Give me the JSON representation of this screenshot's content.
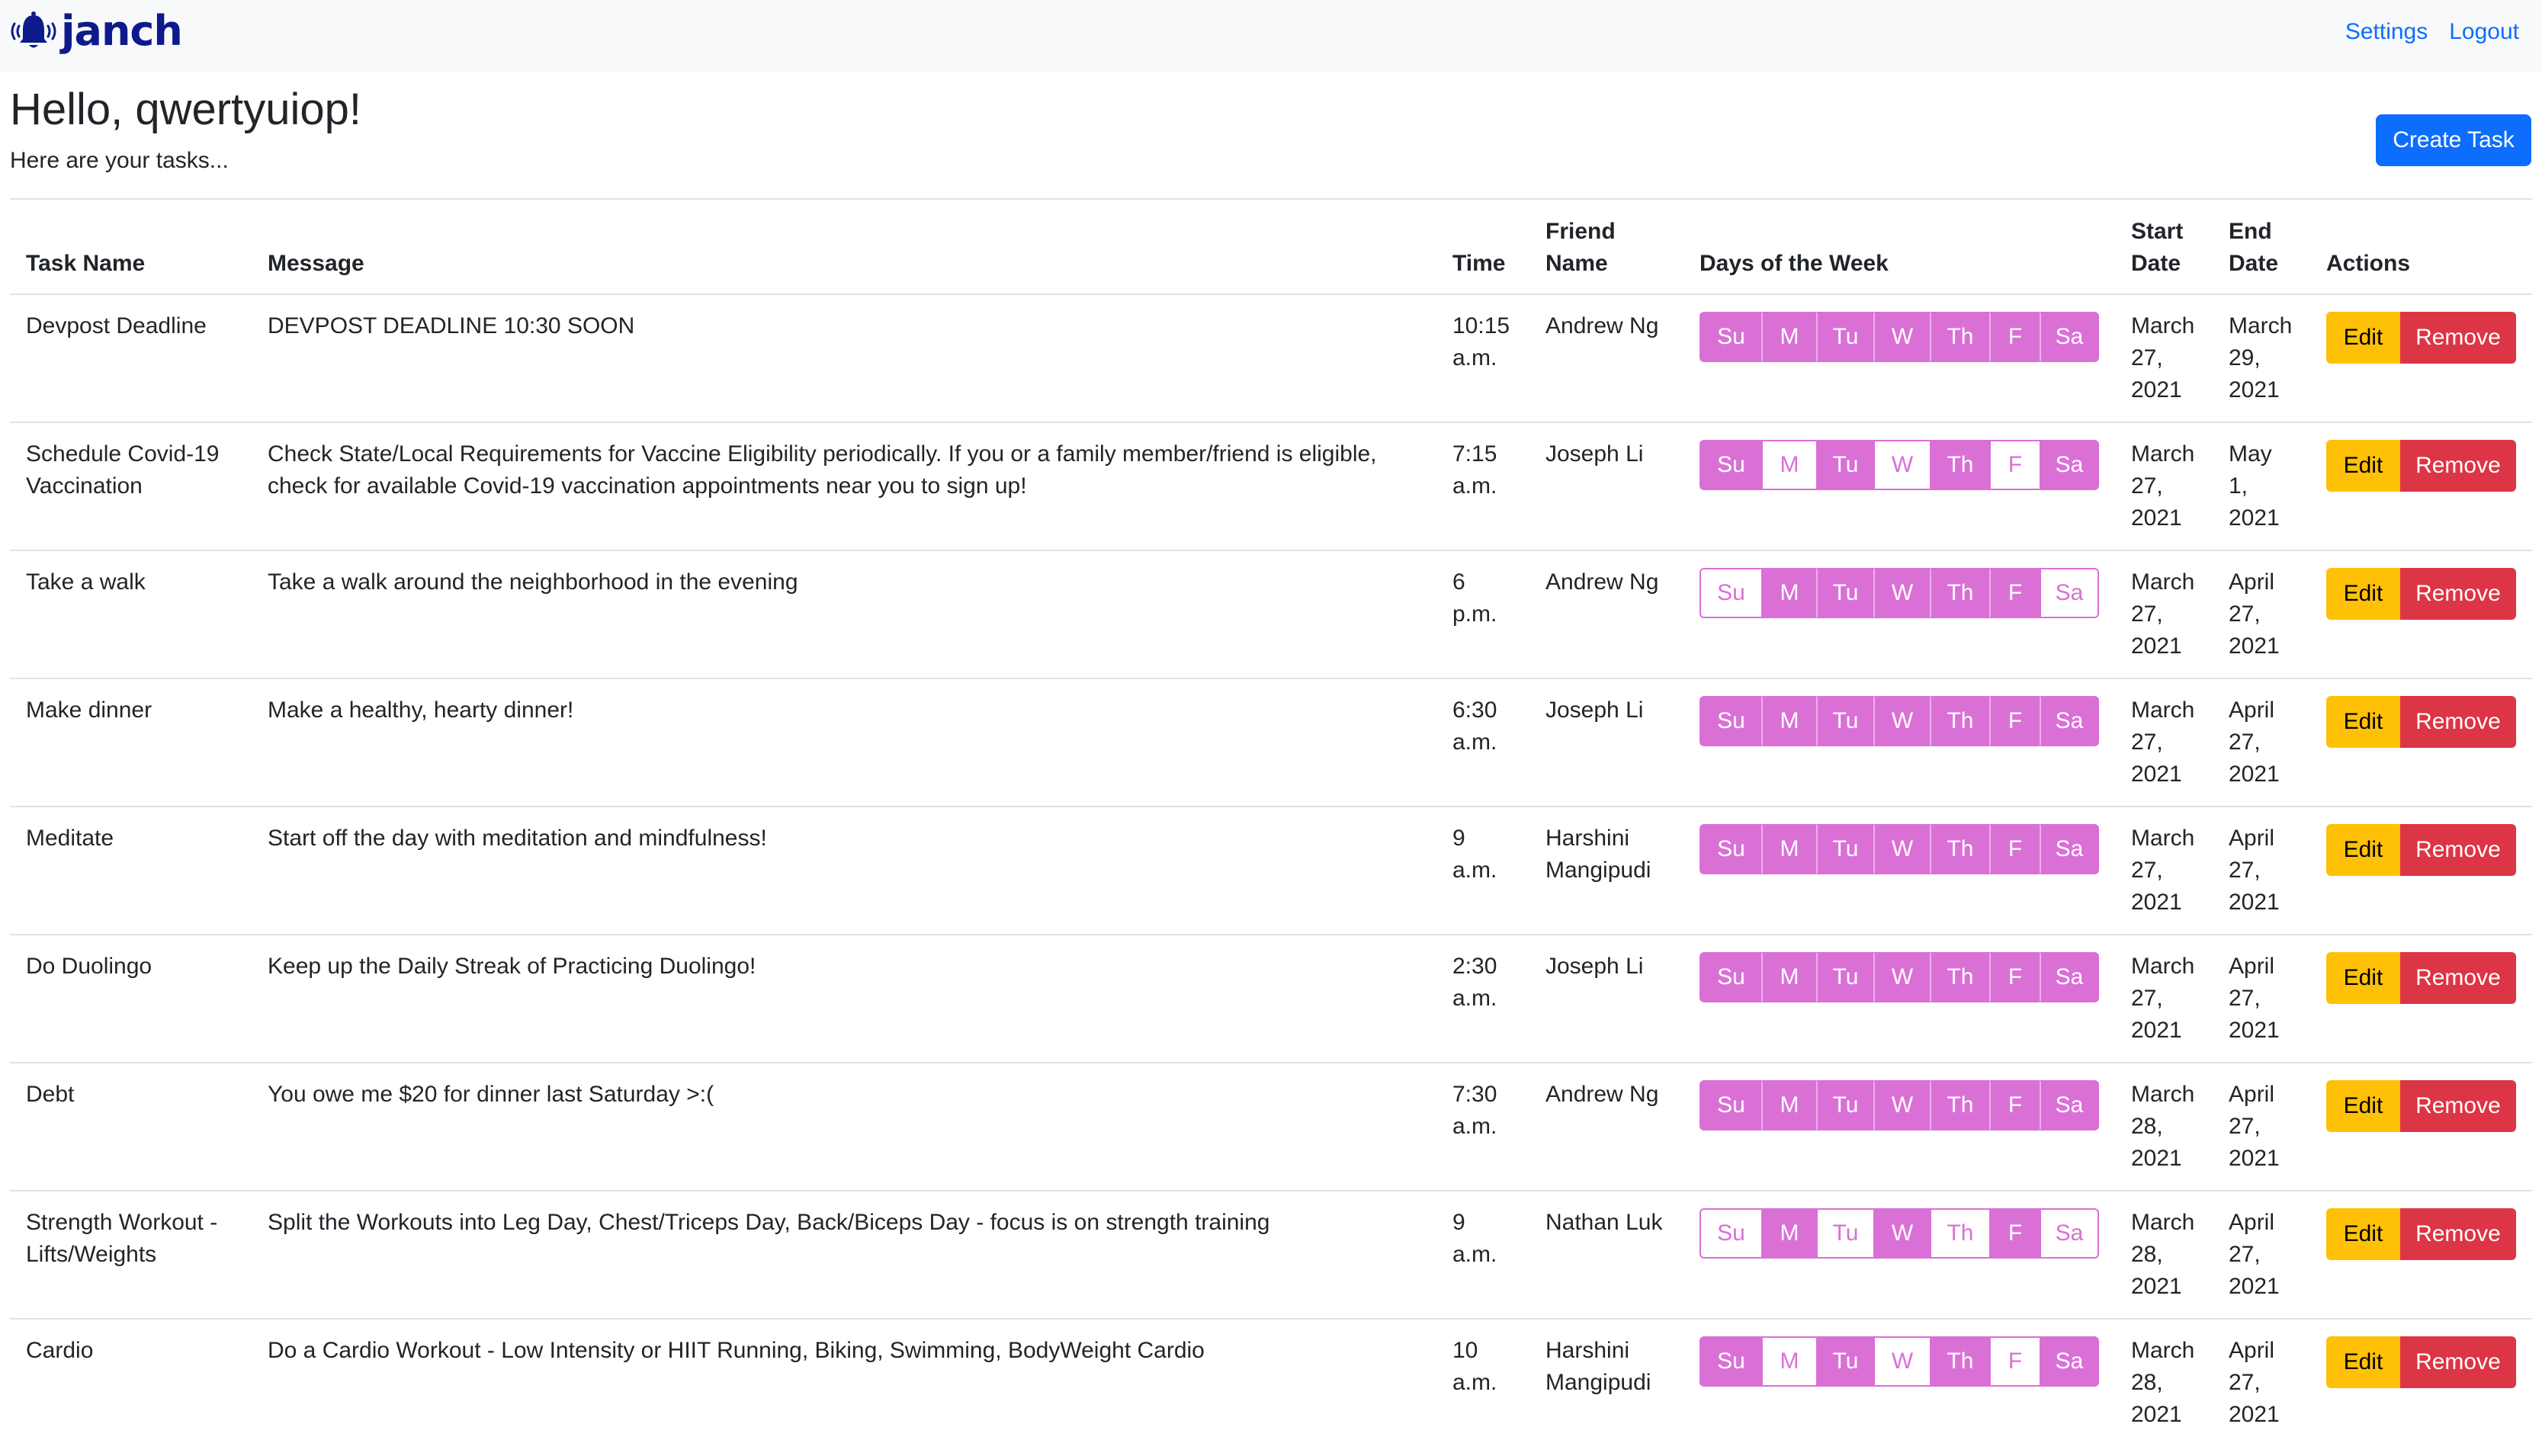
{
  "nav": {
    "brand": "janch",
    "settings": "Settings",
    "logout": "Logout"
  },
  "header": {
    "greeting": "Hello, qwertyuiop!",
    "subtitle": "Here are your tasks...",
    "create_button": "Create Task"
  },
  "table": {
    "headers": [
      "Task Name",
      "Message",
      "Time",
      "Friend Name",
      "Days of the Week",
      "Start Date",
      "End Date",
      "Actions"
    ],
    "day_labels": [
      "Su",
      "M",
      "Tu",
      "W",
      "Th",
      "F",
      "Sa"
    ],
    "edit_label": "Edit",
    "remove_label": "Remove",
    "rows": [
      {
        "task": "Devpost Deadline",
        "message": "DEVPOST DEADLINE 10:30 SOON",
        "time": "10:15 a.m.",
        "friend": "Andrew Ng",
        "days": [
          true,
          true,
          true,
          true,
          true,
          true,
          true
        ],
        "start": "March 27, 2021",
        "end": "March 29, 2021"
      },
      {
        "task": "Schedule Covid-19 Vaccination",
        "message": "Check State/Local Requirements for Vaccine Eligibility periodically. If you or a family member/friend is eligible, check for available Covid-19 vaccination appointments near you to sign up!",
        "time": "7:15 a.m.",
        "friend": "Joseph Li",
        "days": [
          true,
          false,
          true,
          false,
          true,
          false,
          true
        ],
        "start": "March 27, 2021",
        "end": "May 1, 2021"
      },
      {
        "task": "Take a walk",
        "message": "Take a walk around the neighborhood in the evening",
        "time": "6 p.m.",
        "friend": "Andrew Ng",
        "days": [
          false,
          true,
          true,
          true,
          true,
          true,
          false
        ],
        "start": "March 27, 2021",
        "end": "April 27, 2021"
      },
      {
        "task": "Make dinner",
        "message": "Make a healthy, hearty dinner!",
        "time": "6:30 a.m.",
        "friend": "Joseph Li",
        "days": [
          true,
          true,
          true,
          true,
          true,
          true,
          true
        ],
        "start": "March 27, 2021",
        "end": "April 27, 2021"
      },
      {
        "task": "Meditate",
        "message": "Start off the day with meditation and mindfulness!",
        "time": "9 a.m.",
        "friend": "Harshini Mangipudi",
        "days": [
          true,
          true,
          true,
          true,
          true,
          true,
          true
        ],
        "start": "March 27, 2021",
        "end": "April 27, 2021"
      },
      {
        "task": "Do Duolingo",
        "message": "Keep up the Daily Streak of Practicing Duolingo!",
        "time": "2:30 a.m.",
        "friend": "Joseph Li",
        "days": [
          true,
          true,
          true,
          true,
          true,
          true,
          true
        ],
        "start": "March 27, 2021",
        "end": "April 27, 2021"
      },
      {
        "task": "Debt",
        "message": "You owe me $20 for dinner last Saturday >:(",
        "time": "7:30 a.m.",
        "friend": "Andrew Ng",
        "days": [
          true,
          true,
          true,
          true,
          true,
          true,
          true
        ],
        "start": "March 28, 2021",
        "end": "April 27, 2021"
      },
      {
        "task": "Strength Workout - Lifts/Weights",
        "message": "Split the Workouts into Leg Day, Chest/Triceps Day, Back/Biceps Day - focus is on strength training",
        "time": "9 a.m.",
        "friend": "Nathan Luk",
        "days": [
          false,
          true,
          false,
          true,
          false,
          true,
          false
        ],
        "start": "March 28, 2021",
        "end": "April 27, 2021"
      },
      {
        "task": "Cardio",
        "message": "Do a Cardio Workout - Low Intensity or HIIT Running, Biking, Swimming, BodyWeight Cardio",
        "time": "10 a.m.",
        "friend": "Harshini Mangipudi",
        "days": [
          true,
          false,
          true,
          false,
          true,
          false,
          true
        ],
        "start": "March 28, 2021",
        "end": "April 27, 2021"
      }
    ]
  },
  "colors": {
    "brand": "#0d1a8c",
    "primary": "#0d6efd",
    "day_active": "#da70d6",
    "edit": "#ffc107",
    "remove": "#dc3545"
  }
}
